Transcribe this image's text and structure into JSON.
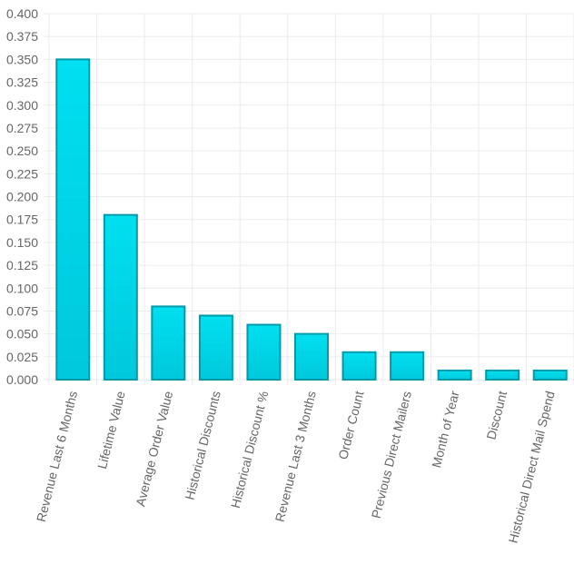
{
  "chart_data": {
    "type": "bar",
    "title": "",
    "xlabel": "",
    "ylabel": "",
    "categories": [
      "Revenue Last 6 Months",
      "Lifetime Value",
      "Average Order Value",
      "Historical Discounts",
      "Historical Discount %",
      "Revenue Last 3 Months",
      "Order Count",
      "Previous Direct Mailers",
      "Month of Year",
      "Discount",
      "Historical Direct Mail Spend"
    ],
    "values": [
      0.35,
      0.18,
      0.08,
      0.07,
      0.06,
      0.05,
      0.03,
      0.03,
      0.01,
      0.01,
      0.01
    ],
    "ylim": [
      0,
      0.4
    ],
    "ytick_step": 0.025,
    "ytick_labels": [
      "0.000",
      "0.025",
      "0.050",
      "0.075",
      "0.100",
      "0.125",
      "0.150",
      "0.175",
      "0.200",
      "0.225",
      "0.250",
      "0.275",
      "0.300",
      "0.325",
      "0.350",
      "0.375",
      "0.400"
    ],
    "grid": true,
    "legend": "none",
    "colors": {
      "bar_fill_top": "#00e0f0",
      "bar_fill_bottom": "#00c8dc",
      "bar_stroke": "#009aa8",
      "grid": "#ebebeb",
      "tick_text": "#666666"
    }
  }
}
